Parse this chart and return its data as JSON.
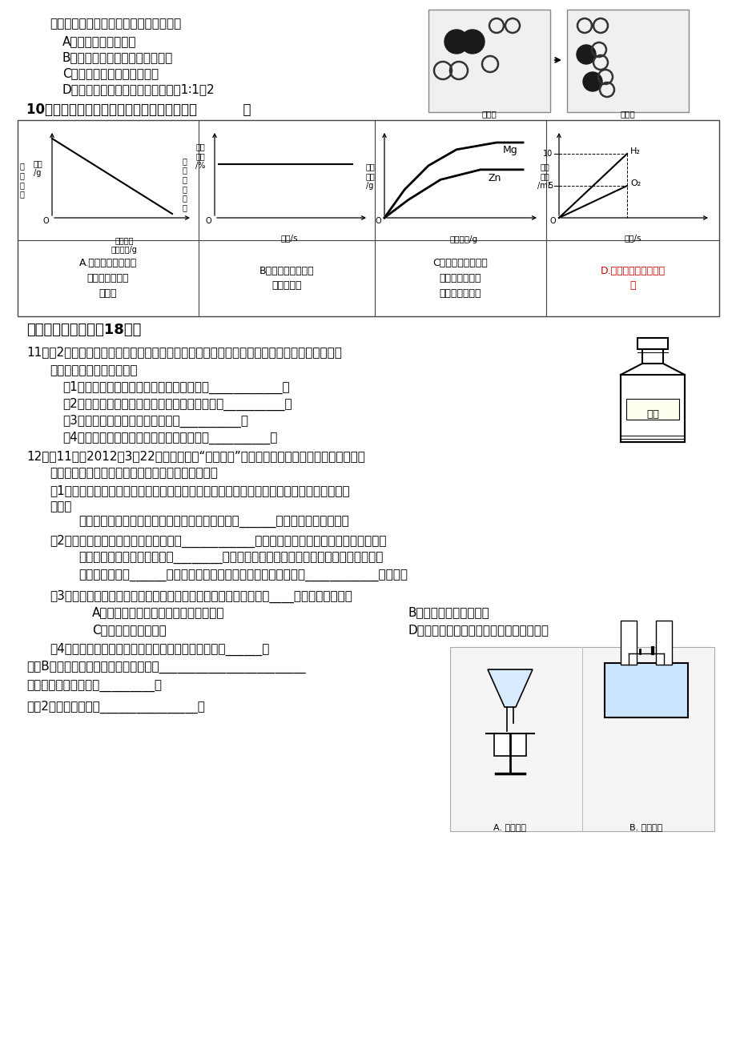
{
  "bg_color": "#ffffff",
  "text_color": "#000000",
  "red_color": "#cc0000",
  "fs": 11,
  "fss": 9,
  "line1": "原子。根据图示判断，下列说法错误的是",
  "optA": "A．此反应有单质生成",
  "optB": "B．原子在化学变化中是不可分的",
  "optC": "C．图中生成物全部是化合物",
  "optD": "D．参加反应的两种分子的个数比为1∶1：2",
  "q10": "10．下列图像能正确反映对应变化关系的是（          ）",
  "sec2_title": "二、填空与简答（全18分）",
  "q11_head": "11．（2分）右图表示一甁氯化钒溶液（氯化钒是由离子构成的，由钒离子和氯离子构成的），",
  "q11_sub": "请用正确的化学用语填空：",
  "q11_1": "（1）写出溶质氯化钒中金属元素的元素符号____________；",
  "q11_2": "（2）写出氯化钒溶液中大量存在的阴离子的符号__________；",
  "q11_3": "（3）标出溶剂水中氢元素的化合价__________；",
  "q11_4": "（4）写出右图标签的横线上氯化钒的化学式__________。",
  "q12_head": "12．（11分）2012年3月22日是第二十个“世界水日”。水是生命的源泉，为了人类社会的可",
  "q12_sub": "持续发展，我们应爱护水资源，了解水的有关知识。",
  "q12_1a": "（1）取一浑浊的水样，向其中加入明蒙搂拌溶解，静置一段时间后，进行＿＿＿（填操作名",
  "q12_1b": "称），",
  "q12_1c": "除去固体小飗粒。再向滤液中加入活性炭，利用其______性除去颜色和异味等。",
  "q12_2a": "（2）为判断所得水样是硬水还是软水，____________检验。水的硬度过大会影响生产和生活，",
  "q12_2b": "应软化后使用。生活中常采用________的方法将硬水软化。在实验室里若要得到净化程度",
  "q12_2c": "最高的水，可用______的方法，如果想知道水样的酸碱度，则可用____________来测定。",
  "q12_3": "（3）爱护水资源，节约用水是全社会的责任，应提倡以下方式中的____（填字母序号）。",
  "q12_3A": "A．将淤米水、洗菜水用来浇花、冲厕所",
  "q12_3B": "B．不间断地放水洗衣服",
  "q12_3C": "C．不间断地放水刷牙",
  "q12_3D": "D．现代农田和园林采用喷灘、滴灘等方式",
  "q12_4a": "（4）右图所示的两个实验中，发生物理变化的是实验______；",
  "q12_4b": "实验B中发生的化学反应用方程式表示为________________________",
  "q12_4c": "没有发生改变的微粒是_________，",
  "q12_4d": "试管2中得到的气体是________________。",
  "tableA_label": "A.向一定量的二氧化\n锄中加入过氧化\n氢溶液",
  "tableB_label": "B．加热一定量的高\n锄酸鿨固体",
  "tableC_label": "C．向两份完全相同\n的稀盐酸中分别\n加入锥粉、镁粉",
  "tableD_label": "D.将水通电电解一段时\n间"
}
